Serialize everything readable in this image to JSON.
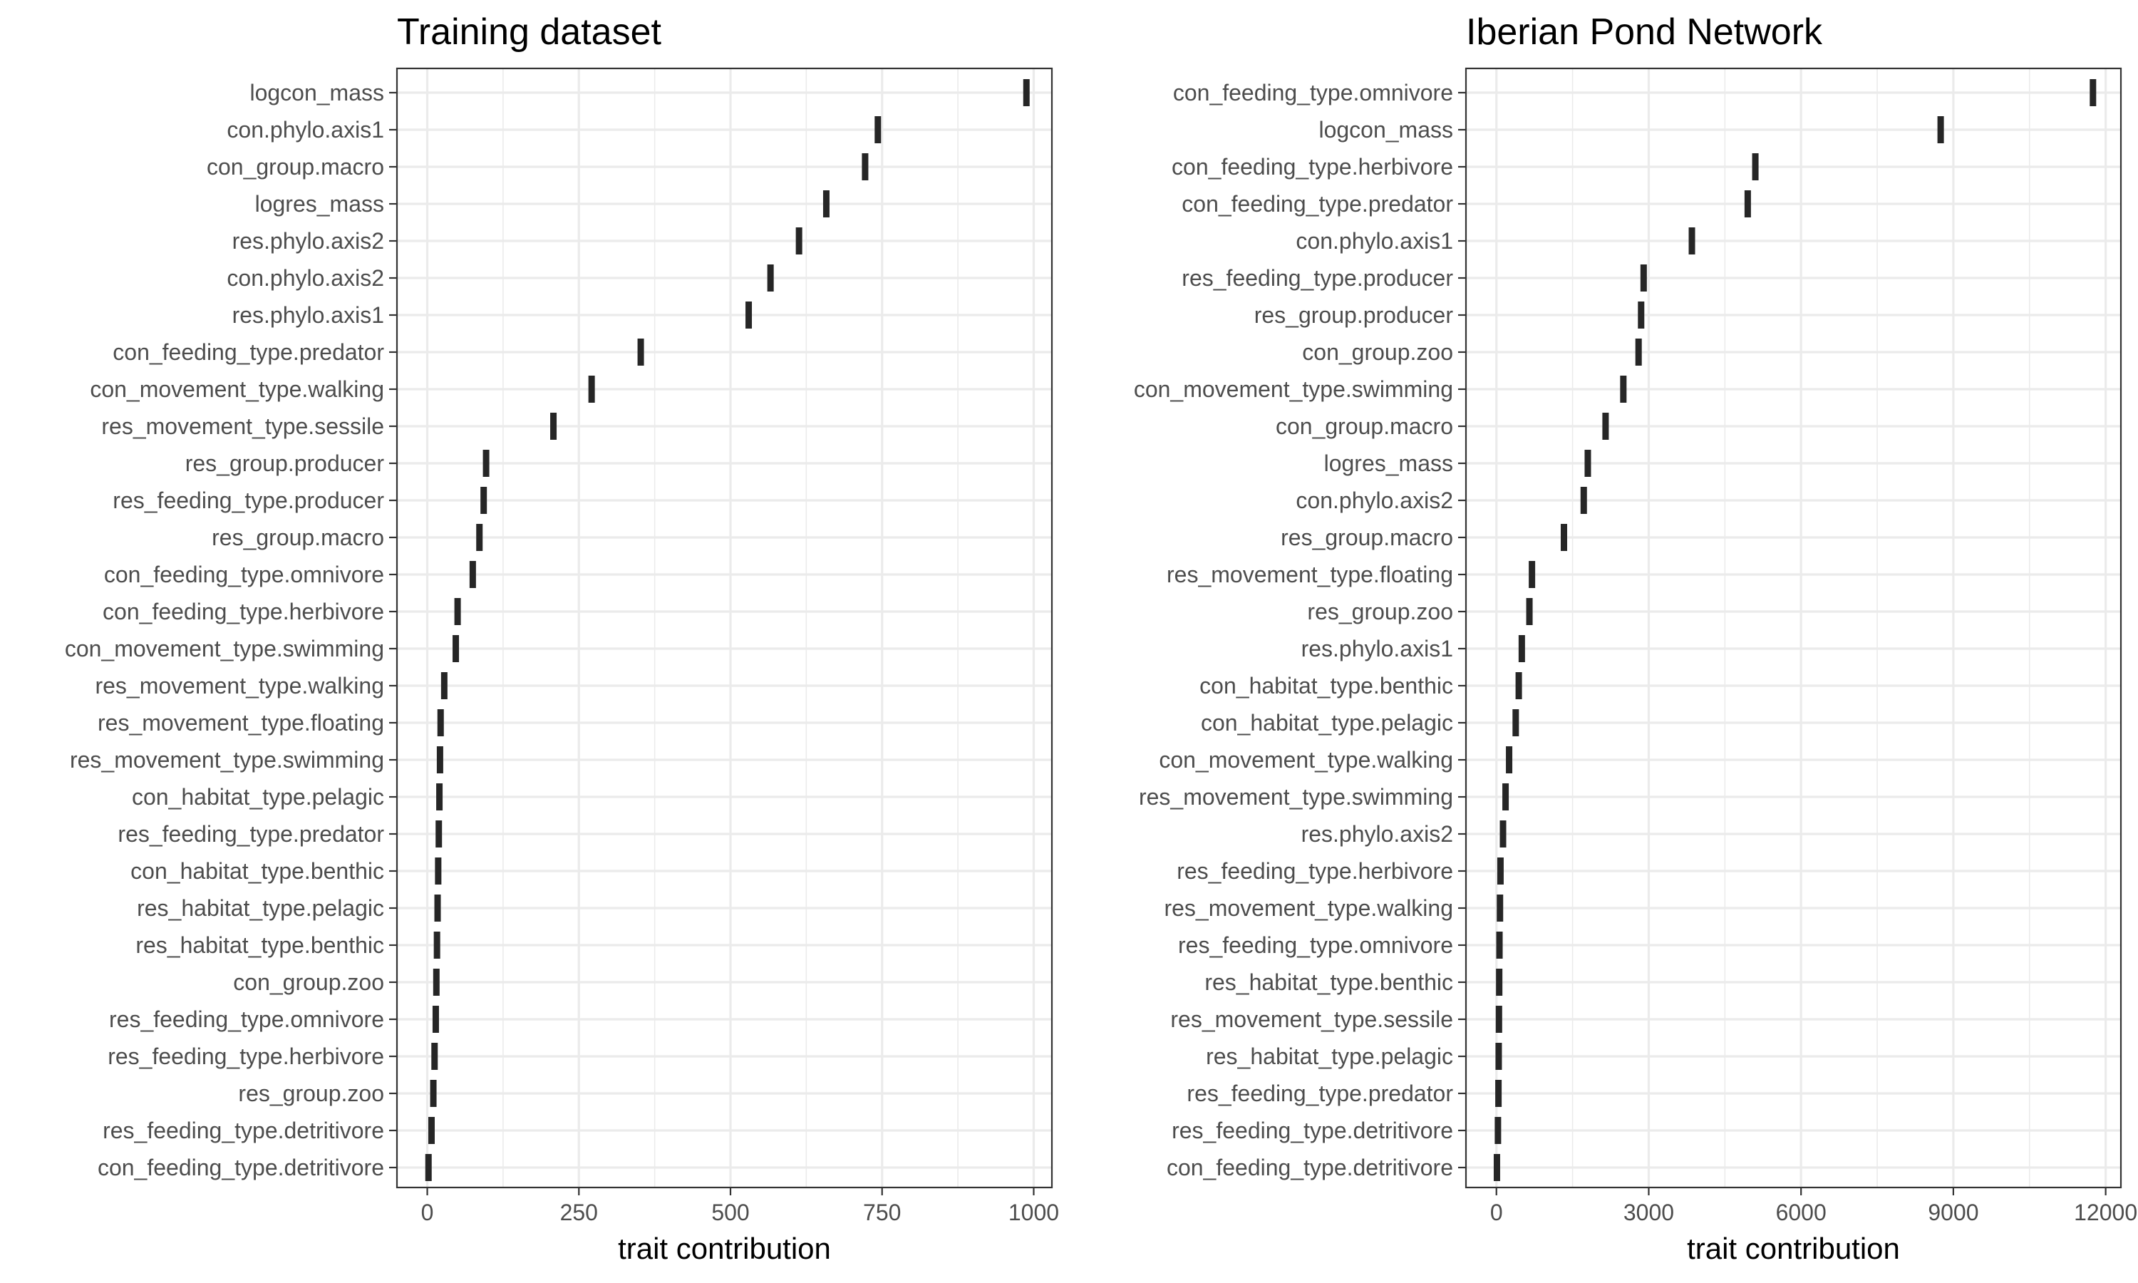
{
  "chart_data": [
    {
      "type": "scatter",
      "title": "Training dataset",
      "xlabel": "trait contribution",
      "ylabel": "",
      "xlim": [
        -50,
        1030
      ],
      "xticks": [
        0,
        250,
        500,
        750,
        1000
      ],
      "grid": true,
      "legend": "none",
      "categories": [
        "logcon_mass",
        "con.phylo.axis1",
        "con_group.macro",
        "logres_mass",
        "res.phylo.axis2",
        "con.phylo.axis2",
        "res.phylo.axis1",
        "con_feeding_type.predator",
        "con_movement_type.walking",
        "res_movement_type.sessile",
        "res_group.producer",
        "res_feeding_type.producer",
        "res_group.macro",
        "con_feeding_type.omnivore",
        "con_feeding_type.herbivore",
        "con_movement_type.swimming",
        "res_movement_type.walking",
        "res_movement_type.floating",
        "res_movement_type.swimming",
        "con_habitat_type.pelagic",
        "res_feeding_type.predator",
        "con_habitat_type.benthic",
        "res_habitat_type.pelagic",
        "res_habitat_type.benthic",
        "con_group.zoo",
        "res_feeding_type.omnivore",
        "res_feeding_type.herbivore",
        "res_group.zoo",
        "res_feeding_type.detritivore",
        "con_feeding_type.detritivore"
      ],
      "values": [
        988,
        743,
        722,
        658,
        613,
        566,
        530,
        352,
        271,
        208,
        97,
        93,
        86,
        75,
        50,
        47,
        28,
        22,
        21,
        20,
        19,
        18,
        17,
        16,
        15,
        14,
        12,
        10,
        7,
        2
      ]
    },
    {
      "type": "scatter",
      "title": "Iberian Pond Network",
      "xlabel": "trait contribution",
      "ylabel": "",
      "xlim": [
        -600,
        12300
      ],
      "xticks": [
        0,
        3000,
        6000,
        9000,
        12000
      ],
      "grid": true,
      "legend": "none",
      "categories": [
        "con_feeding_type.omnivore",
        "logcon_mass",
        "con_feeding_type.herbivore",
        "con_feeding_type.predator",
        "con.phylo.axis1",
        "res_feeding_type.producer",
        "res_group.producer",
        "con_group.zoo",
        "con_movement_type.swimming",
        "con_group.macro",
        "logres_mass",
        "con.phylo.axis2",
        "res_group.macro",
        "res_movement_type.floating",
        "res_group.zoo",
        "res.phylo.axis1",
        "con_habitat_type.benthic",
        "con_habitat_type.pelagic",
        "con_movement_type.walking",
        "res_movement_type.swimming",
        "res.phylo.axis2",
        "res_feeding_type.herbivore",
        "res_movement_type.walking",
        "res_feeding_type.omnivore",
        "res_habitat_type.benthic",
        "res_movement_type.sessile",
        "res_habitat_type.pelagic",
        "res_feeding_type.predator",
        "res_feeding_type.detritivore",
        "con_feeding_type.detritivore"
      ],
      "values": [
        11750,
        8750,
        5100,
        4950,
        3850,
        2900,
        2850,
        2800,
        2500,
        2150,
        1800,
        1720,
        1330,
        700,
        650,
        500,
        440,
        380,
        250,
        180,
        130,
        80,
        70,
        60,
        55,
        50,
        45,
        40,
        30,
        10
      ]
    }
  ]
}
